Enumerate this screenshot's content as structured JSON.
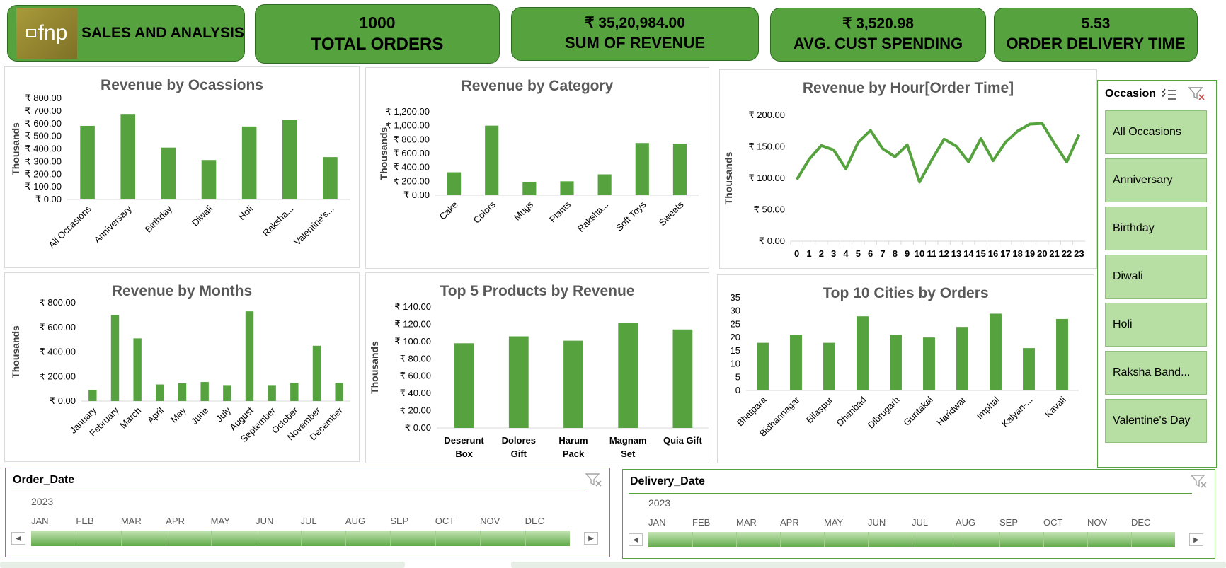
{
  "brand": {
    "logo_text": "fnp",
    "title": "SALES AND ANALYSIS"
  },
  "kpis": [
    {
      "value": "1000",
      "label": "TOTAL ORDERS"
    },
    {
      "value": "₹ 35,20,984.00",
      "label": "SUM OF REVENUE"
    },
    {
      "value": "₹ 3,520.98",
      "label": "AVG. CUST SPENDING"
    },
    {
      "value": "5.53",
      "label": "ORDER DELIVERY TIME"
    }
  ],
  "colors": {
    "accent": "#55a23e",
    "accent_dark": "#2f6b22",
    "slicer_fill": "#b7dea3"
  },
  "chart_data": [
    {
      "id": "occasions",
      "type": "bar",
      "title": "Revenue by Ocassions",
      "ylabel": "Thousands",
      "categories": [
        "All Occasions",
        "Anniversary",
        "Birthday",
        "Diwali",
        "Holi",
        "Raksha...",
        "Valentine's..."
      ],
      "values": [
        582,
        676,
        410,
        312,
        577,
        630,
        335
      ],
      "ylim": [
        0,
        800
      ],
      "yticks": [
        0,
        100,
        200,
        300,
        400,
        500,
        600,
        700,
        800
      ],
      "ytick_labels": [
        "₹ 0.00",
        "₹ 100.00",
        "₹ 200.00",
        "₹ 300.00",
        "₹ 400.00",
        "₹ 500.00",
        "₹ 600.00",
        "₹ 700.00",
        "₹ 800.00"
      ],
      "grid": false
    },
    {
      "id": "category",
      "type": "bar",
      "title": "Revenue by Category",
      "ylabel": "Thousands",
      "categories": [
        "Cake",
        "Colors",
        "Mugs",
        "Plants",
        "Raksha...",
        "Soft Toys",
        "Sweets"
      ],
      "values": [
        330,
        1000,
        190,
        200,
        300,
        750,
        740
      ],
      "ylim": [
        0,
        1200
      ],
      "yticks": [
        0,
        200,
        400,
        600,
        800,
        1000,
        1200
      ],
      "ytick_labels": [
        "₹ 0.00",
        "₹ 200.00",
        "₹ 400.00",
        "₹ 600.00",
        "₹ 800.00",
        "₹ 1,000.00",
        "₹ 1,200.00"
      ],
      "grid": false
    },
    {
      "id": "hour",
      "type": "line",
      "title": "Revenue by Hour[Order Time]",
      "ylabel": "Thousands",
      "x": [
        "0",
        "1",
        "2",
        "3",
        "4",
        "5",
        "6",
        "7",
        "8",
        "9",
        "10",
        "11",
        "12",
        "13",
        "14",
        "15",
        "16",
        "17",
        "18",
        "19",
        "20",
        "21",
        "22",
        "23"
      ],
      "values": [
        98,
        130,
        152,
        145,
        115,
        157,
        176,
        147,
        134,
        153,
        94,
        129,
        162,
        151,
        126,
        163,
        128,
        157,
        175,
        186,
        187,
        155,
        126,
        169
      ],
      "ylim": [
        0,
        200
      ],
      "yticks": [
        0,
        50,
        100,
        150,
        200
      ],
      "ytick_labels": [
        "₹ 0.00",
        "₹ 50.00",
        "₹ 100.00",
        "₹ 150.00",
        "₹ 200.00"
      ],
      "grid": false
    },
    {
      "id": "months",
      "type": "bar",
      "title": "Revenue by Months",
      "ylabel": "Thousands",
      "categories": [
        "January",
        "February",
        "March",
        "April",
        "May",
        "June",
        "July",
        "August",
        "September",
        "October",
        "November",
        "December"
      ],
      "values": [
        90,
        700,
        510,
        135,
        145,
        155,
        130,
        730,
        130,
        148,
        450,
        148
      ],
      "ylim": [
        0,
        800
      ],
      "yticks": [
        0,
        200,
        400,
        600,
        800
      ],
      "ytick_labels": [
        "₹ 0.00",
        "₹ 200.00",
        "₹ 400.00",
        "₹ 600.00",
        "₹ 800.00"
      ],
      "grid": false
    },
    {
      "id": "products",
      "type": "bar",
      "title": "Top 5 Products by Revenue",
      "ylabel": "Thousands",
      "categories": [
        "Deserunt Box",
        "Dolores Gift",
        "Harum Pack",
        "Magnam Set",
        "Quia Gift"
      ],
      "values": [
        98,
        106,
        101,
        122,
        114
      ],
      "ylim": [
        0,
        140
      ],
      "yticks": [
        0,
        20,
        40,
        60,
        80,
        100,
        120,
        140
      ],
      "ytick_labels": [
        "₹ 0.00",
        "₹ 20.00",
        "₹ 40.00",
        "₹ 60.00",
        "₹ 80.00",
        "₹ 100.00",
        "₹ 120.00",
        "₹ 140.00"
      ],
      "grid": false
    },
    {
      "id": "cities",
      "type": "bar",
      "title": "Top 10 Cities by Orders",
      "ylabel": "",
      "categories": [
        "Bhatpara",
        "Bidhannagar",
        "Bilaspur",
        "Dhanbad",
        "Dibrugarh",
        "Guntakal",
        "Haridwar",
        "Imphal",
        "Kalyan-...",
        "Kavali"
      ],
      "values": [
        18,
        21,
        18,
        28,
        21,
        20,
        24,
        29,
        16,
        27
      ],
      "ylim": [
        0,
        35
      ],
      "yticks": [
        0,
        5,
        10,
        15,
        20,
        25,
        30,
        35
      ],
      "ytick_labels": [
        "0",
        "5",
        "10",
        "15",
        "20",
        "25",
        "30",
        "35"
      ],
      "grid": false
    }
  ],
  "occasion_slicer": {
    "header": "Occasion",
    "items": [
      "All Occasions",
      "Anniversary",
      "Birthday",
      "Diwali",
      "Holi",
      "Raksha Band...",
      "Valentine's Day"
    ]
  },
  "timelines": [
    {
      "header": "Order_Date",
      "year": "2023",
      "months": [
        "JAN",
        "FEB",
        "MAR",
        "APR",
        "MAY",
        "JUN",
        "JUL",
        "AUG",
        "SEP",
        "OCT",
        "NOV",
        "DEC"
      ]
    },
    {
      "header": "Delivery_Date",
      "year": "2023",
      "months": [
        "JAN",
        "FEB",
        "MAR",
        "APR",
        "MAY",
        "JUN",
        "JUL",
        "AUG",
        "SEP",
        "OCT",
        "NOV",
        "DEC"
      ]
    }
  ]
}
